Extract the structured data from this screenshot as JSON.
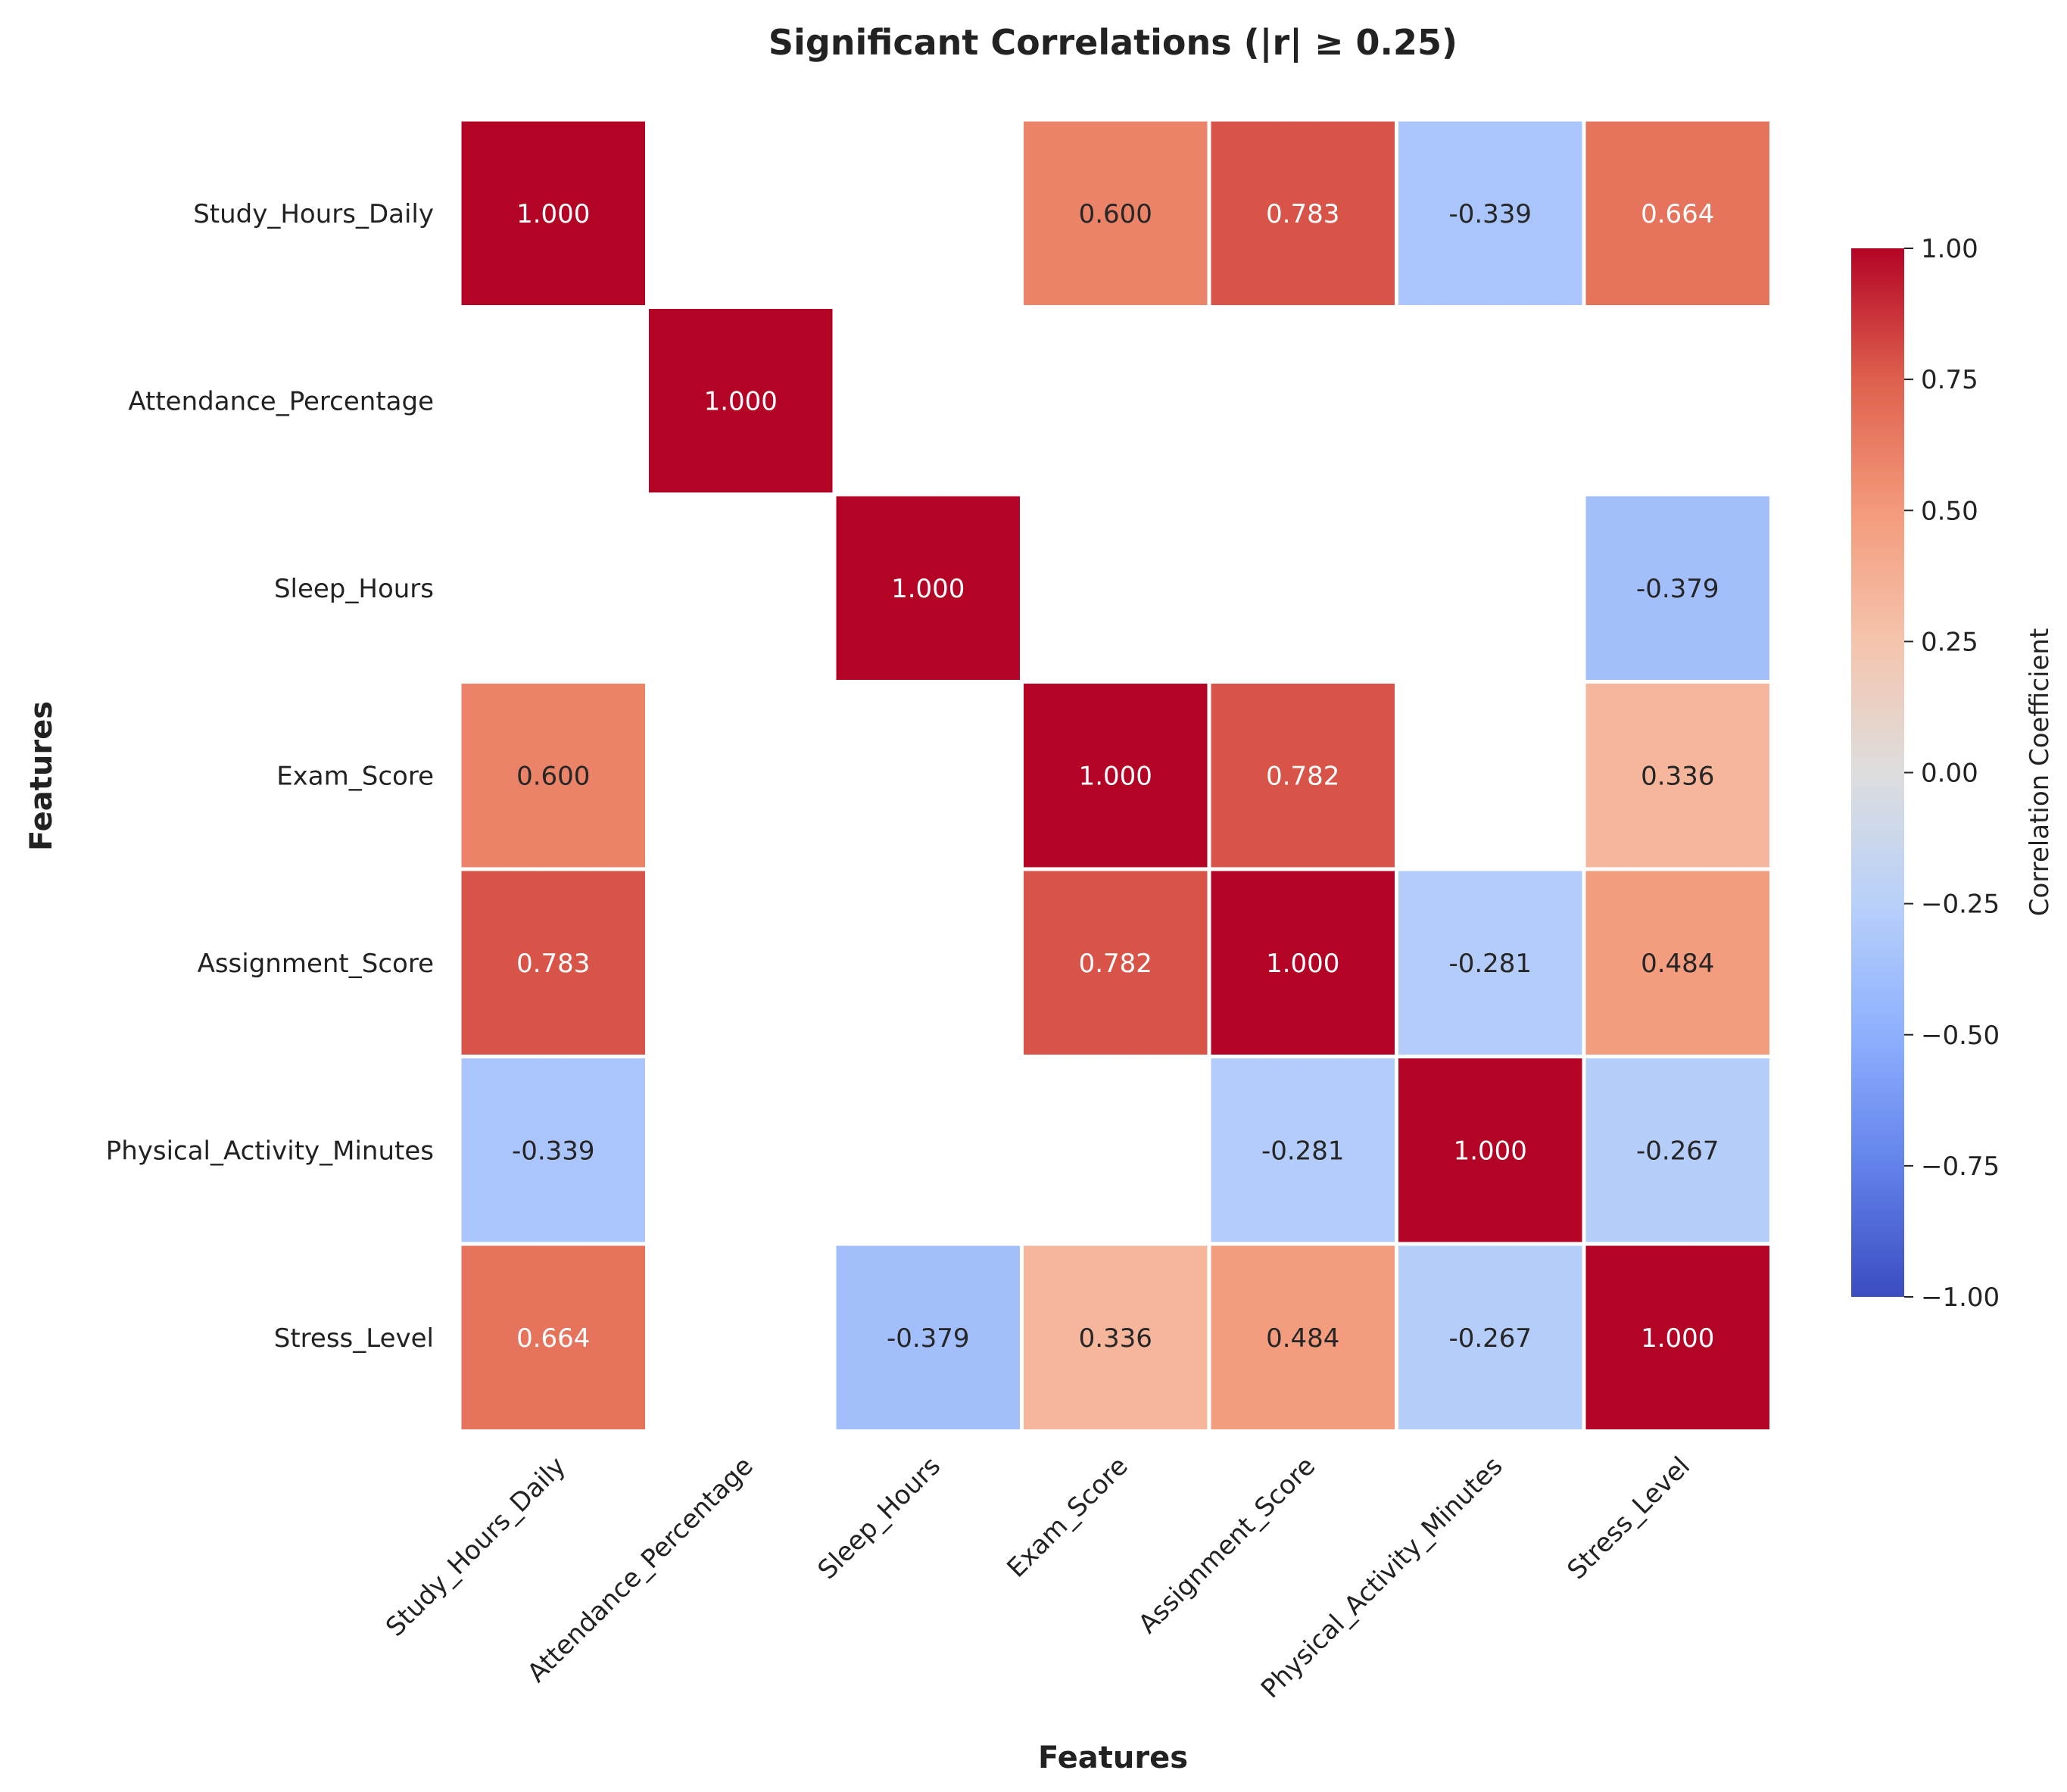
{
  "chart_data": {
    "type": "heatmap",
    "title": "Significant Correlations (|r| ≥ 0.25)",
    "xlabel": "Features",
    "ylabel": "Features",
    "labels": [
      "Study_Hours_Daily",
      "Attendance_Percentage",
      "Sleep_Hours",
      "Exam_Score",
      "Assignment_Score",
      "Physical_Activity_Minutes",
      "Stress_Level"
    ],
    "matrix": [
      [
        1.0,
        null,
        null,
        0.6,
        0.783,
        -0.339,
        0.664
      ],
      [
        null,
        1.0,
        null,
        null,
        null,
        null,
        null
      ],
      [
        null,
        null,
        1.0,
        null,
        null,
        null,
        -0.379
      ],
      [
        0.6,
        null,
        null,
        1.0,
        0.782,
        null,
        0.336
      ],
      [
        0.783,
        null,
        null,
        0.782,
        1.0,
        -0.281,
        0.484
      ],
      [
        -0.339,
        null,
        null,
        null,
        -0.281,
        1.0,
        -0.267
      ],
      [
        0.664,
        null,
        -0.379,
        0.336,
        0.484,
        -0.267,
        1.0
      ]
    ],
    "value_format": "0.000",
    "colormap": "coolwarm",
    "vmin": -1.0,
    "vmax": 1.0,
    "colorbar": {
      "label": "Correlation Coefficient",
      "ticks": [
        "1.00",
        "0.75",
        "0.50",
        "0.25",
        "0.00",
        "−0.25",
        "−0.50",
        "−0.75",
        "−1.00"
      ]
    },
    "grid": false,
    "colors": {
      "positive_max": "#b40426",
      "neutral": "#dddddd",
      "negative_max": "#3b4cc0"
    }
  }
}
